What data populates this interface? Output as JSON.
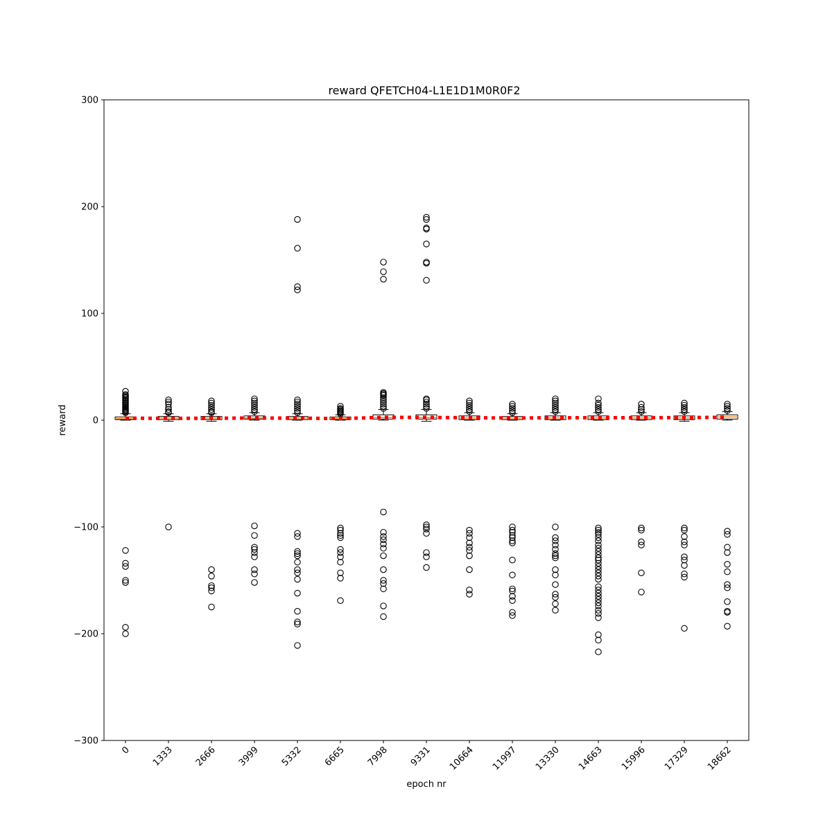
{
  "chart_data": {
    "type": "box",
    "title": "reward QFETCH04-L1E1D1M0R0F2",
    "xlabel": "epoch nr",
    "ylabel": "reward",
    "ylim": [
      -300,
      300
    ],
    "yticks": [
      -300,
      -200,
      -100,
      0,
      100,
      200,
      300
    ],
    "ytick_labels": [
      "−300",
      "−200",
      "−100",
      "0",
      "100",
      "200",
      "300"
    ],
    "categories": [
      "0",
      "1333",
      "2666",
      "3999",
      "5332",
      "6665",
      "7998",
      "9331",
      "10664",
      "11997",
      "13330",
      "14663",
      "15996",
      "17329",
      "18662"
    ],
    "mean_line_color": "#ff0000",
    "median_color": "#ff7f0e",
    "boxes": [
      {
        "whislo": 0,
        "q1": 0.5,
        "med": 1.5,
        "q3": 3,
        "whishi": 6,
        "mean": 1.8,
        "fliers_high": [
          7,
          8,
          9,
          10,
          11,
          12,
          13,
          14,
          15,
          16,
          17,
          18,
          19,
          20,
          21,
          22,
          23,
          24,
          27
        ],
        "fliers_low": [
          -122,
          -134,
          -137,
          -150,
          -152,
          -194,
          -200
        ]
      },
      {
        "whislo": -1,
        "q1": 0.5,
        "med": 2,
        "q3": 3.5,
        "whishi": 6,
        "mean": 1.7,
        "fliers_high": [
          7,
          8,
          10,
          12,
          15,
          17,
          19
        ],
        "fliers_low": [
          -100
        ]
      },
      {
        "whislo": -1,
        "q1": 0.5,
        "med": 2,
        "q3": 3.5,
        "whishi": 6,
        "mean": 1.8,
        "fliers_high": [
          7,
          8,
          10,
          12,
          14,
          16,
          18
        ],
        "fliers_low": [
          -140,
          -146,
          -155,
          -157,
          -160,
          -175
        ]
      },
      {
        "whislo": 0,
        "q1": 1,
        "med": 2,
        "q3": 4,
        "whishi": 7,
        "mean": 2.0,
        "fliers_high": [
          8,
          10,
          12,
          14,
          16,
          18,
          20
        ],
        "fliers_low": [
          -99,
          -108,
          -119,
          -121,
          -124,
          -128,
          -140,
          -144,
          -152
        ]
      },
      {
        "whislo": 0,
        "q1": 0.5,
        "med": 2,
        "q3": 3.5,
        "whishi": 6,
        "mean": 1.9,
        "fliers_high": [
          7,
          9,
          11,
          13,
          15,
          17,
          19,
          122,
          125,
          161,
          188
        ],
        "fliers_low": [
          -106,
          -109,
          -123,
          -125,
          -127,
          -133,
          -140,
          -143,
          -149,
          -162,
          -179,
          -189,
          -191,
          -211
        ]
      },
      {
        "whislo": 0,
        "q1": 0.5,
        "med": 1.5,
        "q3": 3,
        "whishi": 5,
        "mean": 1.5,
        "fliers_high": [
          6,
          7,
          8,
          9,
          10,
          11,
          13
        ],
        "fliers_low": [
          -101,
          -103,
          -106,
          -108,
          -110,
          -121,
          -124,
          -128,
          -133,
          -143,
          -148,
          -169
        ]
      },
      {
        "whislo": 0,
        "q1": 1,
        "med": 2.5,
        "q3": 5,
        "whishi": 10,
        "mean": 2.6,
        "fliers_high": [
          11,
          13,
          15,
          17,
          19,
          21,
          23,
          24,
          25,
          26,
          132,
          139,
          148
        ],
        "fliers_low": [
          -86,
          -105,
          -109,
          -112,
          -116,
          -120,
          -127,
          -140,
          -150,
          -153,
          -158,
          -174,
          -184
        ]
      },
      {
        "whislo": -1,
        "q1": 1,
        "med": 2.5,
        "q3": 5,
        "whishi": 10,
        "mean": 2.6,
        "fliers_high": [
          11,
          13,
          15,
          17,
          19,
          20,
          131,
          147,
          148,
          165,
          179,
          180,
          188,
          190
        ],
        "fliers_low": [
          -98,
          -100,
          -102,
          -106,
          -124,
          -128,
          -138
        ]
      },
      {
        "whislo": 0,
        "q1": 0.5,
        "med": 2,
        "q3": 4,
        "whishi": 7,
        "mean": 2.2,
        "fliers_high": [
          8,
          10,
          12,
          14,
          16,
          18
        ],
        "fliers_low": [
          -103,
          -106,
          -110,
          -115,
          -119,
          -122,
          -127,
          -140,
          -159,
          -163
        ]
      },
      {
        "whislo": 0,
        "q1": 0.5,
        "med": 2,
        "q3": 3.5,
        "whishi": 6,
        "mean": 2.1,
        "fliers_high": [
          7,
          9,
          11,
          13,
          15
        ],
        "fliers_low": [
          -100,
          -103,
          -105,
          -108,
          -110,
          -113,
          -115,
          -131,
          -145,
          -158,
          -160,
          -165,
          -169,
          -180,
          -183
        ]
      },
      {
        "whislo": 0,
        "q1": 0.5,
        "med": 2,
        "q3": 4,
        "whishi": 7,
        "mean": 2.2,
        "fliers_high": [
          8,
          10,
          12,
          14,
          16,
          18,
          20
        ],
        "fliers_low": [
          -100,
          -110,
          -113,
          -117,
          -121,
          -125,
          -127,
          -129,
          -140,
          -145,
          -154,
          -163,
          -166,
          -172,
          -178
        ]
      },
      {
        "whislo": 0,
        "q1": 0.5,
        "med": 2,
        "q3": 4,
        "whishi": 7,
        "mean": 2.3,
        "fliers_high": [
          8,
          10,
          12,
          14,
          16,
          20
        ],
        "fliers_low": [
          -101,
          -103,
          -105,
          -107,
          -110,
          -113,
          -117,
          -120,
          -123,
          -126,
          -129,
          -131,
          -134,
          -137,
          -140,
          -143,
          -146,
          -149,
          -156,
          -159,
          -162,
          -165,
          -168,
          -171,
          -174,
          -178,
          -181,
          -185,
          -201,
          -206,
          -217
        ]
      },
      {
        "whislo": 0,
        "q1": 0.5,
        "med": 2,
        "q3": 4,
        "whishi": 7,
        "mean": 2.3,
        "fliers_high": [
          8,
          10,
          12,
          15
        ],
        "fliers_low": [
          -101,
          -103,
          -114,
          -117,
          -143,
          -161
        ]
      },
      {
        "whislo": -1,
        "q1": 0.5,
        "med": 2,
        "q3": 4,
        "whishi": 7,
        "mean": 2.4,
        "fliers_high": [
          8,
          10,
          12,
          14,
          16
        ],
        "fliers_low": [
          -101,
          -103,
          -109,
          -114,
          -117,
          -128,
          -131,
          -136,
          -144,
          -147,
          -195
        ]
      },
      {
        "whislo": 0,
        "q1": 1,
        "med": 3,
        "q3": 5,
        "whishi": 8,
        "mean": 2.7,
        "fliers_high": [
          9,
          11,
          13,
          15
        ],
        "fliers_low": [
          -104,
          -107,
          -119,
          -124,
          -135,
          -142,
          -154,
          -157,
          -170,
          -179,
          -180,
          -193
        ]
      }
    ]
  }
}
